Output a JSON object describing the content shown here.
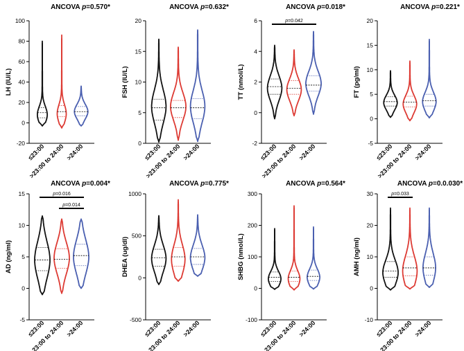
{
  "colors": {
    "black": "#111111",
    "red": "#dd3a33",
    "blue": "#4a5fb0"
  },
  "groups": [
    "≤23:00",
    ">23:00 to 24:00",
    ">24:00"
  ],
  "chart_data": [
    {
      "type": "violin",
      "title_prefix": "ANCOVA ",
      "title_p": "p",
      "title_rest": "=0.570*",
      "ylabel": "LH (IU/L)",
      "ylim": [
        -20,
        100
      ],
      "yticks": [
        -20,
        0,
        20,
        40,
        60,
        80,
        100
      ],
      "series": [
        {
          "name": "≤23:00",
          "min": -3,
          "max": 80,
          "median": 10,
          "q1": 5,
          "q3": 15,
          "mode": 8,
          "width": 0.55
        },
        {
          "name": ">23:00 to 24:00",
          "min": -5,
          "max": 86,
          "median": 11,
          "q1": 6,
          "q3": 17,
          "mode": 9,
          "width": 0.5
        },
        {
          "name": ">24:00",
          "min": -3,
          "max": 36,
          "median": 11,
          "q1": 7,
          "q3": 16,
          "mode": 11,
          "width": 0.75
        }
      ],
      "comparisons": []
    },
    {
      "type": "violin",
      "title_prefix": "ANCOVA ",
      "title_p": "p",
      "title_rest": "=0.632*",
      "ylabel": "FSH (IU/L)",
      "ylim": [
        0,
        20
      ],
      "yticks": [
        0,
        5,
        10,
        15,
        20
      ],
      "series": [
        {
          "name": "≤23:00",
          "min": 0.2,
          "max": 17,
          "median": 5.8,
          "q1": 3.8,
          "q3": 7.2,
          "mode": 6,
          "width": 0.8
        },
        {
          "name": ">23:00 to 24:00",
          "min": 0.5,
          "max": 15.7,
          "median": 5.8,
          "q1": 4.2,
          "q3": 7,
          "mode": 6,
          "width": 0.85
        },
        {
          "name": ">24:00",
          "min": 0.3,
          "max": 18.5,
          "median": 5.8,
          "q1": 4,
          "q3": 7.3,
          "mode": 6,
          "width": 0.8
        }
      ],
      "comparisons": []
    },
    {
      "type": "violin",
      "title_prefix": "ANCOVA ",
      "title_p": "p",
      "title_rest": "=0.018*",
      "ylabel": "TT (nmol/L)",
      "ylim": [
        -2,
        6
      ],
      "yticks": [
        -2,
        0,
        2,
        4,
        6
      ],
      "series": [
        {
          "name": "≤23:00",
          "min": -0.4,
          "max": 4.4,
          "median": 1.7,
          "q1": 1.2,
          "q3": 2.2,
          "mode": 1.6,
          "width": 0.8
        },
        {
          "name": ">23:00 to 24:00",
          "min": -0.2,
          "max": 4.1,
          "median": 1.6,
          "q1": 1.2,
          "q3": 2.1,
          "mode": 1.5,
          "width": 0.8
        },
        {
          "name": ">24:00",
          "min": -0.1,
          "max": 5.3,
          "median": 1.8,
          "q1": 1.4,
          "q3": 2.4,
          "mode": 1.9,
          "width": 0.85
        }
      ],
      "comparisons": [
        {
          "from": 0,
          "to": 2,
          "level": 0,
          "label": "p=0.042"
        }
      ]
    },
    {
      "type": "violin",
      "title_prefix": "ANCOVA ",
      "title_p": "p",
      "title_rest": "=0.221*",
      "ylabel": "FT (pg/ml)",
      "ylim": [
        -5,
        20
      ],
      "yticks": [
        -5,
        0,
        5,
        10,
        15,
        20
      ],
      "series": [
        {
          "name": "≤23:00",
          "min": 0.3,
          "max": 9.8,
          "median": 3.5,
          "q1": 2.6,
          "q3": 4.5,
          "mode": 3.3,
          "width": 0.75
        },
        {
          "name": ">23:00 to 24:00",
          "min": -0.4,
          "max": 11.8,
          "median": 3.4,
          "q1": 2.4,
          "q3": 4.6,
          "mode": 3,
          "width": 0.75
        },
        {
          "name": ">24:00",
          "min": 0.2,
          "max": 16.2,
          "median": 3.7,
          "q1": 2.6,
          "q3": 5,
          "mode": 3.5,
          "width": 0.75
        }
      ],
      "comparisons": []
    },
    {
      "type": "violin",
      "title_prefix": "ANCOVA ",
      "title_p": "p",
      "title_rest": "=0.004*",
      "ylabel": "AD (ng/ml)",
      "ylim": [
        -5,
        15
      ],
      "yticks": [
        -5,
        0,
        5,
        10,
        15
      ],
      "series": [
        {
          "name": "≤23:00",
          "min": -1,
          "max": 11.5,
          "median": 4.5,
          "q1": 2.8,
          "q3": 6.5,
          "mode": 4.5,
          "width": 0.85
        },
        {
          "name": ">23:00 to 24:00",
          "min": -0.8,
          "max": 11,
          "median": 4.6,
          "q1": 3.2,
          "q3": 6.3,
          "mode": 4.8,
          "width": 0.85
        },
        {
          "name": ">24:00",
          "min": 0,
          "max": 11,
          "median": 5.2,
          "q1": 3.6,
          "q3": 7,
          "mode": 5,
          "width": 0.85
        }
      ],
      "comparisons": [
        {
          "from": 0,
          "to": 2,
          "level": 0,
          "label": "p=0.016"
        },
        {
          "from": 1,
          "to": 2,
          "level": 1,
          "label": "p=0.014"
        }
      ]
    },
    {
      "type": "violin",
      "title_prefix": "ANCOVA ",
      "title_p": "p",
      "title_rest": "=0.775*",
      "ylabel": "DHEA (ug/dl)",
      "ylim": [
        -500,
        1000
      ],
      "yticks": [
        -500,
        0,
        500,
        1000
      ],
      "series": [
        {
          "name": "≤23:00",
          "min": -80,
          "max": 740,
          "median": 240,
          "q1": 140,
          "q3": 340,
          "mode": 230,
          "width": 0.8
        },
        {
          "name": ">23:00 to 24:00",
          "min": -40,
          "max": 930,
          "median": 250,
          "q1": 140,
          "q3": 360,
          "mode": 220,
          "width": 0.75
        },
        {
          "name": ">24:00",
          "min": 20,
          "max": 750,
          "median": 250,
          "q1": 160,
          "q3": 350,
          "mode": 240,
          "width": 0.8
        }
      ],
      "comparisons": []
    },
    {
      "type": "violin",
      "title_prefix": "ANCOVA ",
      "title_p": "p",
      "title_rest": "=0.564*",
      "ylabel": "SHBG (nmol/L)",
      "ylim": [
        -100,
        300
      ],
      "yticks": [
        -100,
        0,
        100,
        200,
        300
      ],
      "series": [
        {
          "name": "≤23:00",
          "min": -3,
          "max": 190,
          "median": 35,
          "q1": 22,
          "q3": 52,
          "mode": 30,
          "width": 0.7
        },
        {
          "name": ">23:00 to 24:00",
          "min": -5,
          "max": 262,
          "median": 35,
          "q1": 22,
          "q3": 55,
          "mode": 30,
          "width": 0.65
        },
        {
          "name": ">24:00",
          "min": -2,
          "max": 195,
          "median": 38,
          "q1": 25,
          "q3": 58,
          "mode": 35,
          "width": 0.7
        }
      ],
      "comparisons": []
    },
    {
      "type": "violin",
      "title_prefix": "ANCOVA ",
      "title_p": "p",
      "title_rest": "=0.0.030*",
      "ylabel": "AMH (ng/ml)",
      "ylim": [
        -10,
        30
      ],
      "yticks": [
        -10,
        0,
        10,
        20,
        30
      ],
      "series": [
        {
          "name": "≤23:00",
          "min": -0.5,
          "max": 25.5,
          "median": 5.5,
          "q1": 3.5,
          "q3": 8.5,
          "mode": 5,
          "width": 0.85
        },
        {
          "name": ">23:00 to 24:00",
          "min": -0.2,
          "max": 25.5,
          "median": 6.5,
          "q1": 4,
          "q3": 10,
          "mode": 5.5,
          "width": 0.8
        },
        {
          "name": ">24:00",
          "min": 0.3,
          "max": 25.5,
          "median": 6.5,
          "q1": 4.2,
          "q3": 10,
          "mode": 6.5,
          "width": 0.7
        }
      ],
      "comparisons": [
        {
          "from": 0,
          "to": 1,
          "level": 0,
          "label": "p=0.033"
        }
      ]
    }
  ]
}
